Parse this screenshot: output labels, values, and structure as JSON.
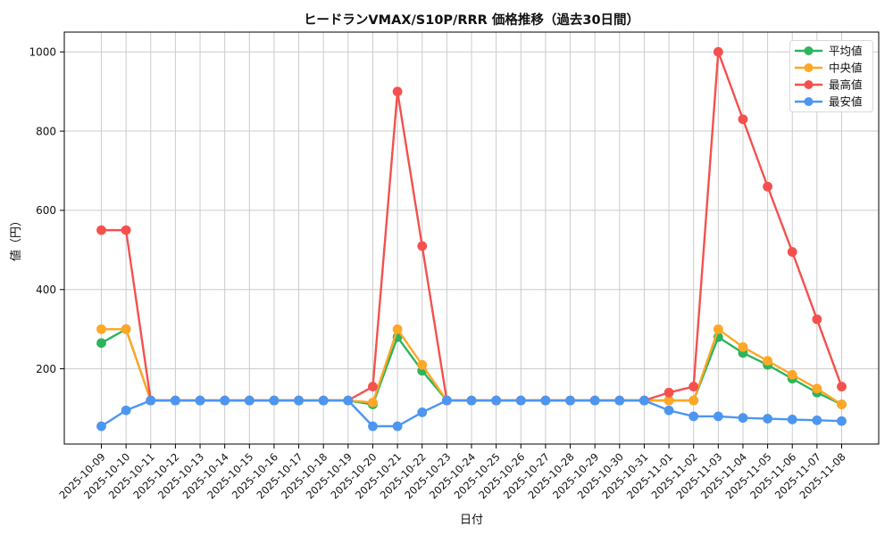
{
  "chart_data": {
    "type": "line",
    "title": "ヒードランVMAX/S10P/RRR 価格推移（過去30日間）",
    "xlabel": "日付",
    "ylabel": "値（円）",
    "grid": true,
    "legend_position": "upper right",
    "ylim": [
      10,
      1050
    ],
    "yticks": [
      200,
      400,
      600,
      800,
      1000
    ],
    "x": [
      "2025-10-09",
      "2025-10-10",
      "2025-10-11",
      "2025-10-12",
      "2025-10-13",
      "2025-10-14",
      "2025-10-15",
      "2025-10-16",
      "2025-10-17",
      "2025-10-18",
      "2025-10-19",
      "2025-10-20",
      "2025-10-21",
      "2025-10-22",
      "2025-10-23",
      "2025-10-24",
      "2025-10-25",
      "2025-10-26",
      "2025-10-27",
      "2025-10-28",
      "2025-10-29",
      "2025-10-30",
      "2025-10-31",
      "2025-11-01",
      "2025-11-02",
      "2025-11-03",
      "2025-11-04",
      "2025-11-05",
      "2025-11-06",
      "2025-11-07",
      "2025-11-08"
    ],
    "series": [
      {
        "key": "average",
        "name": "平均値",
        "color": "#2db45c",
        "values": [
          265,
          300,
          120,
          120,
          120,
          120,
          120,
          120,
          120,
          120,
          120,
          110,
          280,
          195,
          120,
          120,
          120,
          120,
          120,
          120,
          120,
          120,
          120,
          120,
          120,
          280,
          240,
          210,
          175,
          140,
          110
        ]
      },
      {
        "key": "median",
        "name": "中央値",
        "color": "#ffa726",
        "values": [
          300,
          300,
          120,
          120,
          120,
          120,
          120,
          120,
          120,
          120,
          120,
          115,
          300,
          210,
          120,
          120,
          120,
          120,
          120,
          120,
          120,
          120,
          120,
          120,
          120,
          300,
          255,
          220,
          185,
          150,
          110
        ]
      },
      {
        "key": "max",
        "name": "最高値",
        "color": "#f4514e",
        "values": [
          550,
          550,
          120,
          120,
          120,
          120,
          120,
          120,
          120,
          120,
          120,
          155,
          900,
          510,
          120,
          120,
          120,
          120,
          120,
          120,
          120,
          120,
          120,
          140,
          155,
          1000,
          830,
          660,
          495,
          325,
          155
        ]
      },
      {
        "key": "min",
        "name": "最安値",
        "color": "#4d96f0",
        "values": [
          55,
          95,
          120,
          120,
          120,
          120,
          120,
          120,
          120,
          120,
          120,
          55,
          55,
          90,
          120,
          120,
          120,
          120,
          120,
          120,
          120,
          120,
          120,
          95,
          80,
          80,
          76,
          74,
          72,
          70,
          68
        ]
      }
    ],
    "colors": {
      "grid": "#cccccc",
      "spine": "#000000",
      "legend_border": "#d9d9d9",
      "background": "#ffffff"
    }
  }
}
